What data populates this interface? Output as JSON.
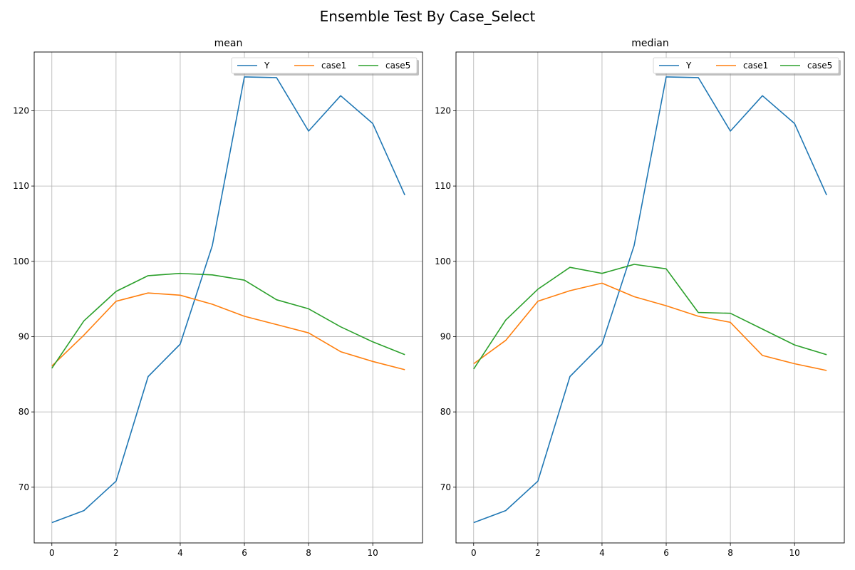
{
  "figure": {
    "suptitle": "Ensemble Test By Case_Select"
  },
  "chart_data": [
    {
      "type": "line",
      "title": "mean",
      "xlabel": "",
      "ylabel": "",
      "xlim": [
        -0.55,
        11.55
      ],
      "ylim": [
        62.6,
        127.8
      ],
      "xticks": [
        0,
        2,
        4,
        6,
        8,
        10
      ],
      "yticks": [
        70,
        80,
        90,
        100,
        110,
        120
      ],
      "grid": true,
      "legend": {
        "placement": "upper-right",
        "columns": 3
      },
      "x": [
        0,
        1,
        2,
        3,
        4,
        5,
        6,
        7,
        8,
        9,
        10,
        11
      ],
      "series": [
        {
          "name": "Y",
          "color": "#1f77b4",
          "values": [
            65.3,
            66.9,
            70.8,
            84.7,
            89.0,
            102.1,
            124.5,
            124.4,
            117.3,
            122.0,
            118.3,
            108.8
          ]
        },
        {
          "name": "case1",
          "color": "#ff7f0e",
          "values": [
            86.1,
            90.2,
            94.7,
            95.8,
            95.5,
            94.3,
            92.7,
            91.6,
            90.5,
            88.0,
            86.7,
            85.6
          ]
        },
        {
          "name": "case5",
          "color": "#2ca02c",
          "values": [
            85.8,
            92.1,
            96.0,
            98.1,
            98.4,
            98.2,
            97.5,
            94.9,
            93.7,
            91.3,
            89.3,
            87.6
          ]
        }
      ]
    },
    {
      "type": "line",
      "title": "median",
      "xlabel": "",
      "ylabel": "",
      "xlim": [
        -0.55,
        11.55
      ],
      "ylim": [
        62.6,
        127.8
      ],
      "xticks": [
        0,
        2,
        4,
        6,
        8,
        10
      ],
      "yticks": [
        70,
        80,
        90,
        100,
        110,
        120
      ],
      "grid": true,
      "legend": {
        "placement": "upper-right",
        "columns": 3
      },
      "x": [
        0,
        1,
        2,
        3,
        4,
        5,
        6,
        7,
        8,
        9,
        10,
        11
      ],
      "series": [
        {
          "name": "Y",
          "color": "#1f77b4",
          "values": [
            65.3,
            66.9,
            70.8,
            84.7,
            89.0,
            102.1,
            124.5,
            124.4,
            117.3,
            122.0,
            118.3,
            108.8
          ]
        },
        {
          "name": "case1",
          "color": "#ff7f0e",
          "values": [
            86.4,
            89.5,
            94.7,
            96.1,
            97.1,
            95.3,
            94.1,
            92.7,
            91.9,
            87.5,
            86.4,
            85.5
          ]
        },
        {
          "name": "case5",
          "color": "#2ca02c",
          "values": [
            85.7,
            92.2,
            96.3,
            99.2,
            98.4,
            99.6,
            99.0,
            93.2,
            93.1,
            91.0,
            88.9,
            87.6
          ]
        }
      ]
    }
  ]
}
